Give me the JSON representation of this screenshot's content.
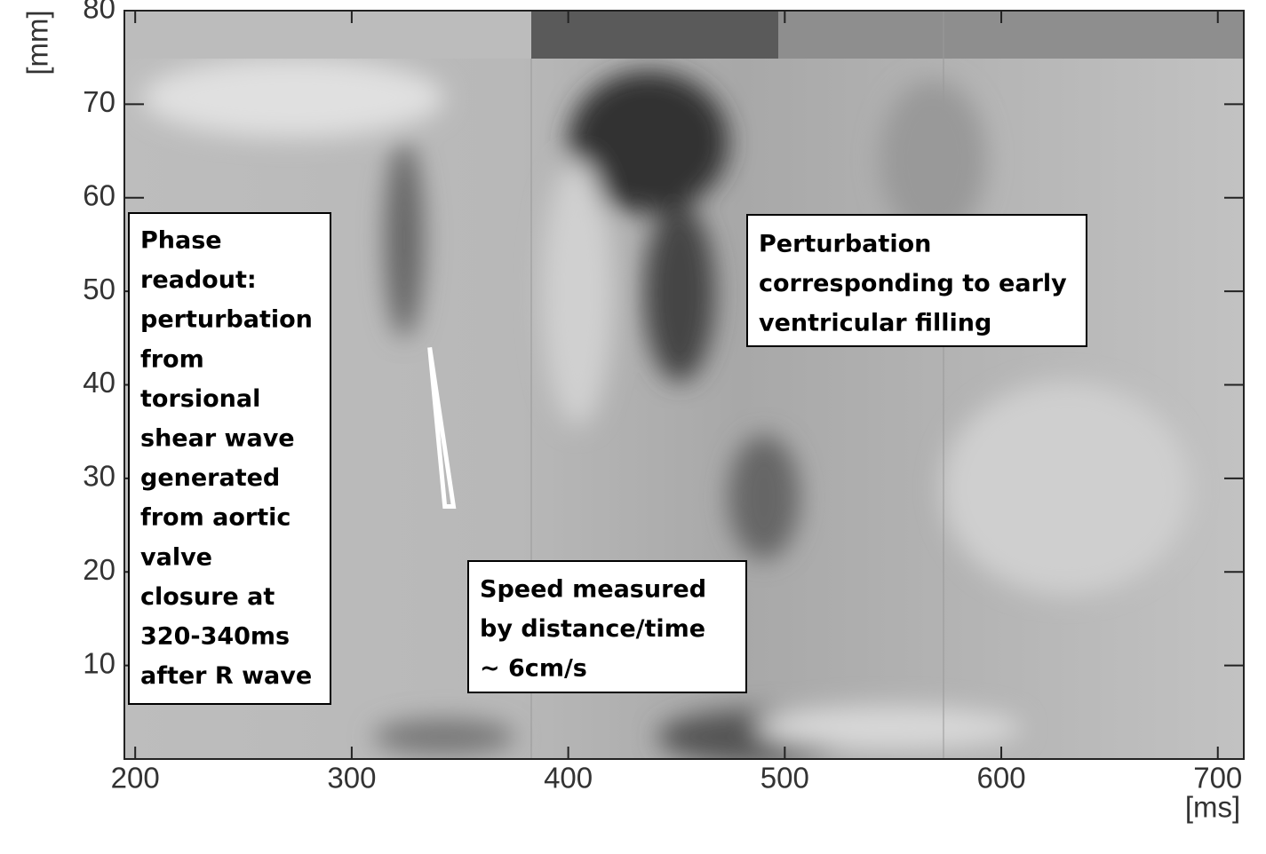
{
  "chart_data": {
    "type": "heatmap",
    "x_label": "[ms]",
    "y_label": "[mm]",
    "xlim": [
      195,
      712
    ],
    "ylim": [
      0,
      80
    ],
    "xticks": [
      200,
      300,
      400,
      500,
      600,
      700
    ],
    "yticks": [
      10,
      20,
      30,
      40,
      50,
      60,
      70,
      80
    ],
    "marker_line": {
      "x": [
        336,
        343,
        347,
        336
      ],
      "y": [
        44,
        27,
        27,
        44
      ],
      "color": "#ffffff"
    },
    "annotations": [
      {
        "lines": [
          "Phase",
          "readout:",
          "perturbation",
          "from",
          "torsional",
          "shear wave",
          "generated",
          "from aortic",
          "valve",
          "closure at",
          "320-340ms",
          "after R wave"
        ]
      },
      {
        "lines": [
          "Perturbation",
          "corresponding to early",
          "ventricular filling"
        ]
      },
      {
        "lines": [
          "Speed measured",
          "by distance/time",
          "~ 6cm/s"
        ]
      }
    ]
  }
}
